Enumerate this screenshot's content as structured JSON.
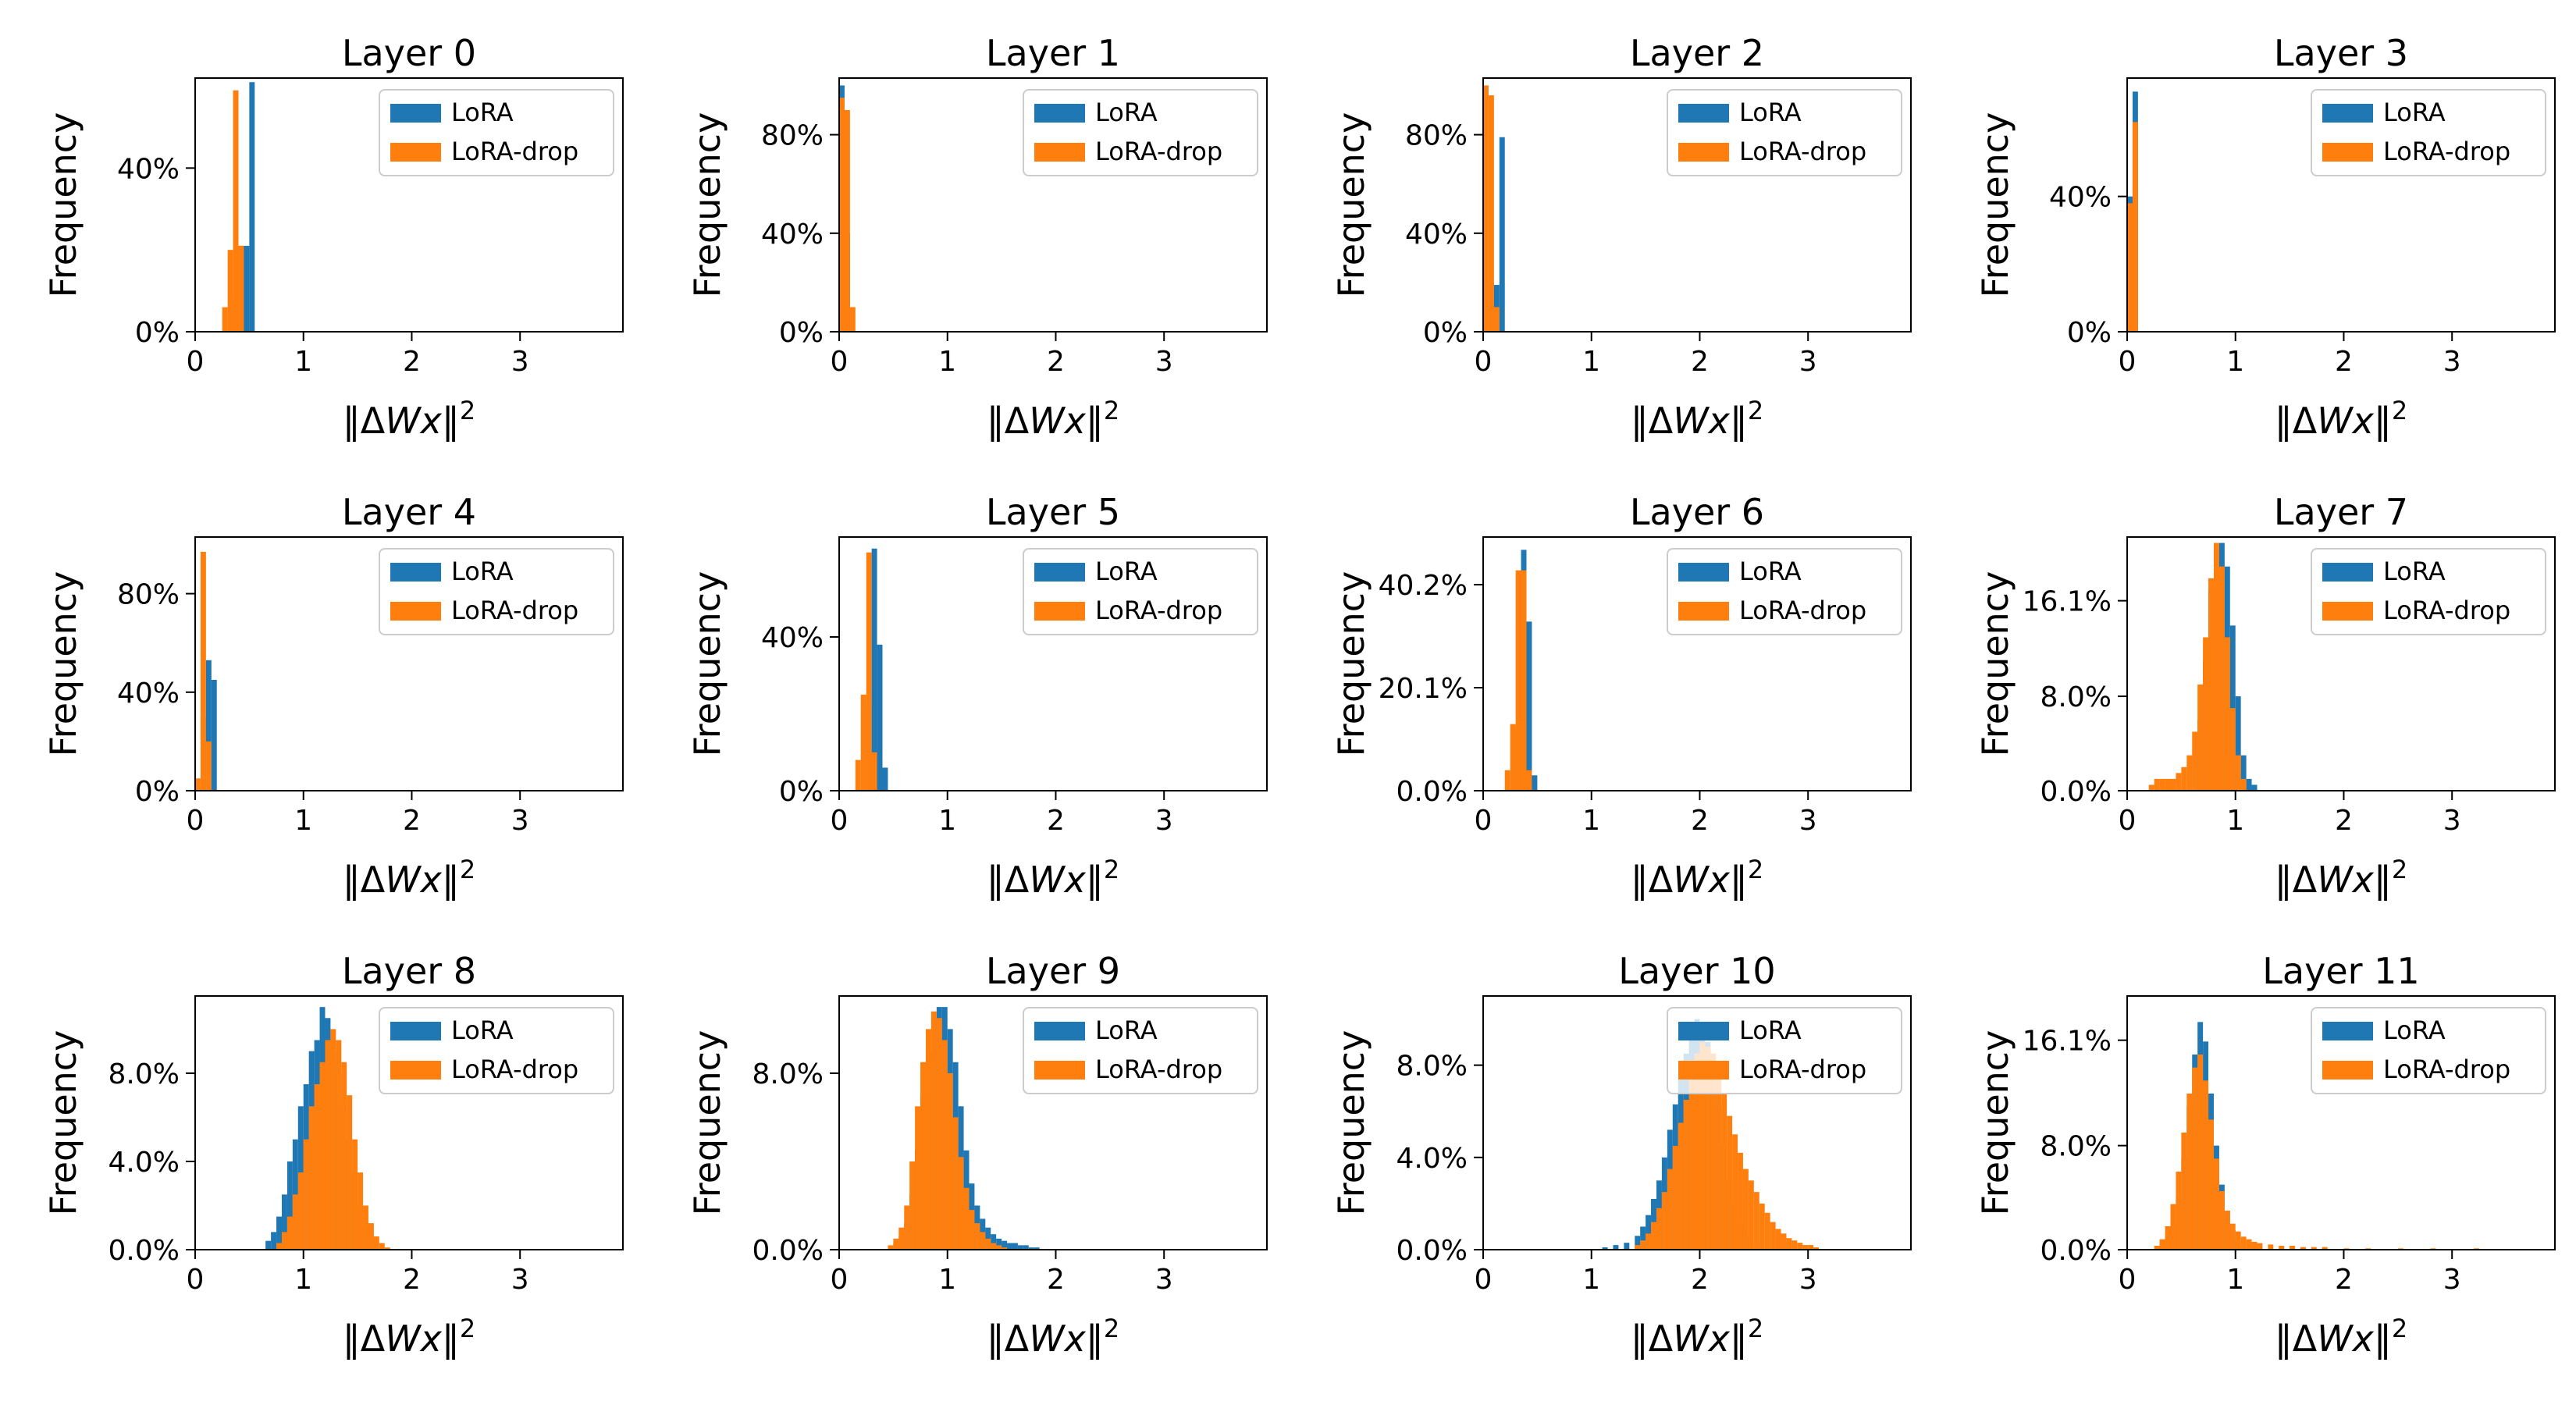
{
  "colors": {
    "lora": "#1f77b4",
    "lora_drop": "#ff7f0e"
  },
  "legend": [
    "LoRA",
    "LoRA-drop"
  ],
  "xlabel_parts": {
    "open": "‖",
    "delta": "Δ",
    "var": "Wx",
    "close": "‖",
    "power": "2"
  },
  "ylabel": "Frequency",
  "chart_data": [
    {
      "type": "bar",
      "title": "Layer 0",
      "xlim": [
        0,
        3.95
      ],
      "xticks": [
        0,
        1,
        2,
        3
      ],
      "ylim": [
        0,
        0.62
      ],
      "yticks": [
        0,
        0.4
      ],
      "ytick_labels": [
        "0%",
        "40%"
      ],
      "bin_width": 0.05,
      "series": [
        {
          "name": "LoRA",
          "x": [
            0.35,
            0.4,
            0.45,
            0.5
          ],
          "values": [
            0.08,
            0.21,
            0.21,
            0.61
          ]
        },
        {
          "name": "LoRA-drop",
          "x": [
            0.25,
            0.3,
            0.35,
            0.4
          ],
          "values": [
            0.06,
            0.2,
            0.59,
            0.21
          ]
        }
      ]
    },
    {
      "type": "bar",
      "title": "Layer 1",
      "xlim": [
        0,
        3.95
      ],
      "xticks": [
        0,
        1,
        2,
        3
      ],
      "ylim": [
        0,
        1.03
      ],
      "yticks": [
        0,
        0.4,
        0.8
      ],
      "ytick_labels": [
        "0%",
        "40%",
        "80%"
      ],
      "bin_width": 0.05,
      "series": [
        {
          "name": "LoRA",
          "x": [
            0.0,
            0.05
          ],
          "values": [
            1.0,
            0.4
          ]
        },
        {
          "name": "LoRA-drop",
          "x": [
            0.0,
            0.05,
            0.1
          ],
          "values": [
            0.95,
            0.9,
            0.1
          ]
        }
      ]
    },
    {
      "type": "bar",
      "title": "Layer 2",
      "xlim": [
        0,
        3.95
      ],
      "xticks": [
        0,
        1,
        2,
        3
      ],
      "ylim": [
        0,
        1.03
      ],
      "yticks": [
        0,
        0.4,
        0.8
      ],
      "ytick_labels": [
        "0%",
        "40%",
        "80%"
      ],
      "bin_width": 0.05,
      "series": [
        {
          "name": "LoRA",
          "x": [
            0.05,
            0.1,
            0.15
          ],
          "values": [
            0.2,
            0.19,
            0.79
          ]
        },
        {
          "name": "LoRA-drop",
          "x": [
            0.0,
            0.05,
            0.1
          ],
          "values": [
            1.0,
            0.96,
            0.1
          ]
        }
      ]
    },
    {
      "type": "bar",
      "title": "Layer 3",
      "xlim": [
        0,
        3.95
      ],
      "xticks": [
        0,
        1,
        2,
        3
      ],
      "ylim": [
        0,
        0.75
      ],
      "yticks": [
        0,
        0.4
      ],
      "ytick_labels": [
        "0%",
        "40%"
      ],
      "bin_width": 0.05,
      "series": [
        {
          "name": "LoRA",
          "x": [
            0.0,
            0.05
          ],
          "values": [
            0.4,
            0.71
          ]
        },
        {
          "name": "LoRA-drop",
          "x": [
            0.0,
            0.05
          ],
          "values": [
            0.38,
            0.62
          ]
        }
      ]
    },
    {
      "type": "bar",
      "title": "Layer 4",
      "xlim": [
        0,
        3.95
      ],
      "xticks": [
        0,
        1,
        2,
        3
      ],
      "ylim": [
        0,
        1.03
      ],
      "yticks": [
        0,
        0.4,
        0.8
      ],
      "ytick_labels": [
        "0%",
        "40%",
        "80%"
      ],
      "bin_width": 0.05,
      "series": [
        {
          "name": "LoRA",
          "x": [
            0.05,
            0.1,
            0.15
          ],
          "values": [
            0.3,
            0.53,
            0.45
          ]
        },
        {
          "name": "LoRA-drop",
          "x": [
            0.0,
            0.05,
            0.1
          ],
          "values": [
            0.05,
            0.97,
            0.2
          ]
        }
      ]
    },
    {
      "type": "bar",
      "title": "Layer 5",
      "xlim": [
        0,
        3.95
      ],
      "xticks": [
        0,
        1,
        2,
        3
      ],
      "ylim": [
        0,
        0.66
      ],
      "yticks": [
        0,
        0.4
      ],
      "ytick_labels": [
        "0%",
        "40%"
      ],
      "bin_width": 0.05,
      "series": [
        {
          "name": "LoRA",
          "x": [
            0.25,
            0.3,
            0.35,
            0.4
          ],
          "values": [
            0.22,
            0.63,
            0.38,
            0.06
          ]
        },
        {
          "name": "LoRA-drop",
          "x": [
            0.15,
            0.2,
            0.25,
            0.3
          ],
          "values": [
            0.08,
            0.25,
            0.62,
            0.1
          ]
        }
      ]
    },
    {
      "type": "bar",
      "title": "Layer 6",
      "xlim": [
        0,
        3.95
      ],
      "xticks": [
        0,
        1,
        2,
        3
      ],
      "ylim": [
        0,
        0.495
      ],
      "yticks": [
        0,
        0.201,
        0.402
      ],
      "ytick_labels": [
        "0.0%",
        "20.1%",
        "40.2%"
      ],
      "bin_width": 0.05,
      "series": [
        {
          "name": "LoRA",
          "x": [
            0.3,
            0.35,
            0.4,
            0.45
          ],
          "values": [
            0.12,
            0.47,
            0.33,
            0.03
          ]
        },
        {
          "name": "LoRA-drop",
          "x": [
            0.2,
            0.25,
            0.3,
            0.35,
            0.4
          ],
          "values": [
            0.04,
            0.13,
            0.43,
            0.43,
            0.04
          ]
        }
      ]
    },
    {
      "type": "bar",
      "title": "Layer 7",
      "xlim": [
        0,
        3.95
      ],
      "xticks": [
        0,
        1,
        2,
        3
      ],
      "ylim": [
        0,
        0.215
      ],
      "yticks": [
        0,
        0.08,
        0.161
      ],
      "ytick_labels": [
        "0.0%",
        "8.0%",
        "16.1%"
      ],
      "bin_width": 0.05,
      "series": [
        {
          "name": "LoRA",
          "x": [
            0.6,
            0.65,
            0.7,
            0.75,
            0.8,
            0.85,
            0.9,
            0.95,
            1.0,
            1.05,
            1.1,
            1.15
          ],
          "values": [
            0.03,
            0.06,
            0.11,
            0.17,
            0.205,
            0.21,
            0.19,
            0.14,
            0.08,
            0.03,
            0.01,
            0.005
          ]
        },
        {
          "name": "LoRA-drop",
          "x": [
            0.2,
            0.25,
            0.3,
            0.35,
            0.4,
            0.45,
            0.5,
            0.55,
            0.6,
            0.65,
            0.7,
            0.75,
            0.8,
            0.85,
            0.9,
            0.95,
            1.0,
            1.05
          ],
          "values": [
            0.005,
            0.01,
            0.01,
            0.01,
            0.01,
            0.015,
            0.02,
            0.03,
            0.05,
            0.09,
            0.13,
            0.18,
            0.21,
            0.19,
            0.13,
            0.07,
            0.03,
            0.01
          ]
        }
      ]
    },
    {
      "type": "bar",
      "title": "Layer 8",
      "xlim": [
        0,
        3.95
      ],
      "xticks": [
        0,
        1,
        2,
        3
      ],
      "ylim": [
        0,
        0.115
      ],
      "yticks": [
        0,
        0.04,
        0.08
      ],
      "ytick_labels": [
        "0.0%",
        "4.0%",
        "8.0%"
      ],
      "bin_width": 0.05,
      "series": [
        {
          "name": "LoRA",
          "x": [
            0.65,
            0.7,
            0.75,
            0.8,
            0.85,
            0.9,
            0.95,
            1.0,
            1.05,
            1.1,
            1.15,
            1.2,
            1.25,
            1.3,
            1.35,
            1.4,
            1.45,
            1.5,
            1.55,
            1.6
          ],
          "values": [
            0.004,
            0.008,
            0.015,
            0.025,
            0.04,
            0.05,
            0.065,
            0.075,
            0.09,
            0.095,
            0.11,
            0.105,
            0.09,
            0.08,
            0.065,
            0.05,
            0.035,
            0.02,
            0.01,
            0.005
          ]
        },
        {
          "name": "LoRA-drop",
          "x": [
            0.75,
            0.8,
            0.85,
            0.9,
            0.95,
            1.0,
            1.05,
            1.1,
            1.15,
            1.2,
            1.25,
            1.3,
            1.35,
            1.4,
            1.45,
            1.5,
            1.55,
            1.6,
            1.65,
            1.7,
            1.75
          ],
          "values": [
            0.003,
            0.008,
            0.015,
            0.025,
            0.035,
            0.05,
            0.065,
            0.075,
            0.085,
            0.095,
            0.1,
            0.095,
            0.085,
            0.07,
            0.05,
            0.035,
            0.02,
            0.012,
            0.006,
            0.003,
            0.001
          ]
        }
      ]
    },
    {
      "type": "bar",
      "title": "Layer 9",
      "xlim": [
        0,
        3.95
      ],
      "xticks": [
        0,
        1,
        2,
        3
      ],
      "ylim": [
        0,
        0.115
      ],
      "yticks": [
        0,
        0.08
      ],
      "ytick_labels": [
        "0.0%",
        "8.0%"
      ],
      "bin_width": 0.05,
      "series": [
        {
          "name": "LoRA",
          "x": [
            0.5,
            0.55,
            0.6,
            0.65,
            0.7,
            0.75,
            0.8,
            0.85,
            0.9,
            0.95,
            1.0,
            1.05,
            1.1,
            1.15,
            1.2,
            1.25,
            1.3,
            1.35,
            1.4,
            1.45,
            1.5,
            1.55,
            1.6,
            1.65,
            1.7,
            1.75,
            1.8
          ],
          "values": [
            0.003,
            0.006,
            0.012,
            0.025,
            0.045,
            0.07,
            0.09,
            0.105,
            0.11,
            0.11,
            0.1,
            0.085,
            0.065,
            0.045,
            0.03,
            0.02,
            0.014,
            0.01,
            0.007,
            0.005,
            0.004,
            0.003,
            0.003,
            0.002,
            0.002,
            0.001,
            0.001
          ]
        },
        {
          "name": "LoRA-drop",
          "x": [
            0.45,
            0.5,
            0.55,
            0.6,
            0.65,
            0.7,
            0.75,
            0.8,
            0.85,
            0.9,
            0.95,
            1.0,
            1.05,
            1.1,
            1.15,
            1.2,
            1.25,
            1.3,
            1.35,
            1.4,
            1.45,
            1.5
          ],
          "values": [
            0.002,
            0.005,
            0.01,
            0.02,
            0.04,
            0.065,
            0.085,
            0.1,
            0.108,
            0.105,
            0.095,
            0.08,
            0.06,
            0.042,
            0.028,
            0.018,
            0.012,
            0.008,
            0.005,
            0.003,
            0.002,
            0.001
          ]
        }
      ]
    },
    {
      "type": "bar",
      "title": "Layer 10",
      "xlim": [
        0,
        3.95
      ],
      "xticks": [
        0,
        1,
        2,
        3
      ],
      "ylim": [
        0,
        0.11
      ],
      "yticks": [
        0,
        0.04,
        0.08
      ],
      "ytick_labels": [
        "0.0%",
        "4.0%",
        "8.0%"
      ],
      "bin_width": 0.05,
      "series": [
        {
          "name": "LoRA",
          "x": [
            1.1,
            1.2,
            1.3,
            1.4,
            1.45,
            1.5,
            1.55,
            1.6,
            1.65,
            1.7,
            1.75,
            1.8,
            1.85,
            1.9,
            1.95,
            2.0,
            2.05,
            2.1,
            2.15,
            2.2,
            2.25,
            2.3,
            2.35,
            2.4,
            2.5
          ],
          "values": [
            0.001,
            0.002,
            0.003,
            0.006,
            0.01,
            0.015,
            0.022,
            0.03,
            0.04,
            0.052,
            0.063,
            0.075,
            0.085,
            0.095,
            0.1,
            0.098,
            0.09,
            0.078,
            0.062,
            0.045,
            0.03,
            0.02,
            0.012,
            0.006,
            0.003
          ]
        },
        {
          "name": "LoRA-drop",
          "x": [
            1.4,
            1.45,
            1.5,
            1.55,
            1.6,
            1.65,
            1.7,
            1.75,
            1.8,
            1.85,
            1.9,
            1.95,
            2.0,
            2.05,
            2.1,
            2.15,
            2.2,
            2.25,
            2.3,
            2.35,
            2.4,
            2.45,
            2.5,
            2.55,
            2.6,
            2.65,
            2.7,
            2.75,
            2.8,
            2.85,
            2.9,
            2.95,
            3.0,
            3.05
          ],
          "values": [
            0.002,
            0.004,
            0.007,
            0.012,
            0.018,
            0.025,
            0.035,
            0.045,
            0.055,
            0.065,
            0.075,
            0.085,
            0.09,
            0.088,
            0.085,
            0.075,
            0.068,
            0.058,
            0.05,
            0.042,
            0.035,
            0.03,
            0.025,
            0.02,
            0.016,
            0.012,
            0.009,
            0.007,
            0.005,
            0.004,
            0.003,
            0.002,
            0.002,
            0.001
          ]
        }
      ]
    },
    {
      "type": "bar",
      "title": "Layer 11",
      "xlim": [
        0,
        3.95
      ],
      "xticks": [
        0,
        1,
        2,
        3
      ],
      "ylim": [
        0,
        0.195
      ],
      "yticks": [
        0,
        0.08,
        0.161
      ],
      "ytick_labels": [
        "0.0%",
        "8.0%",
        "16.1%"
      ],
      "bin_width": 0.05,
      "series": [
        {
          "name": "LoRA",
          "x": [
            0.3,
            0.35,
            0.4,
            0.45,
            0.5,
            0.55,
            0.6,
            0.65,
            0.7,
            0.75,
            0.8,
            0.85,
            0.9,
            0.95,
            1.0
          ],
          "values": [
            0.005,
            0.01,
            0.02,
            0.04,
            0.07,
            0.11,
            0.15,
            0.175,
            0.16,
            0.12,
            0.08,
            0.05,
            0.03,
            0.015,
            0.007
          ]
        },
        {
          "name": "LoRA-drop",
          "x": [
            0.25,
            0.3,
            0.35,
            0.4,
            0.45,
            0.5,
            0.55,
            0.6,
            0.65,
            0.7,
            0.75,
            0.8,
            0.85,
            0.9,
            0.95,
            1.0,
            1.05,
            1.1,
            1.15,
            1.2,
            1.3,
            1.4,
            1.5,
            1.6,
            1.7,
            1.8,
            2.0,
            2.2,
            2.5,
            2.8,
            3.2
          ],
          "values": [
            0.003,
            0.008,
            0.018,
            0.035,
            0.06,
            0.09,
            0.12,
            0.14,
            0.15,
            0.13,
            0.1,
            0.07,
            0.045,
            0.03,
            0.02,
            0.014,
            0.01,
            0.008,
            0.006,
            0.005,
            0.004,
            0.003,
            0.003,
            0.002,
            0.002,
            0.002,
            0.001,
            0.001,
            0.001,
            0.001,
            0.001
          ]
        }
      ]
    }
  ]
}
